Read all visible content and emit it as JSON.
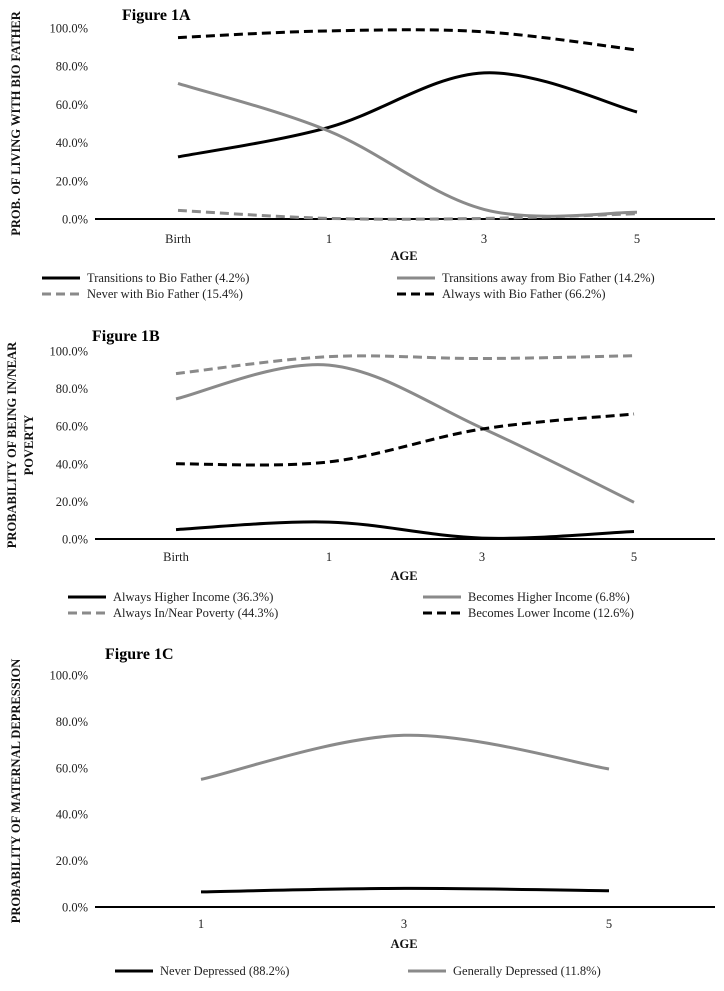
{
  "colors": {
    "black": "#000000",
    "gray": "#8a8a8a",
    "axis": "#000000"
  },
  "chart_data": [
    {
      "type": "line",
      "title": "Figure 1A",
      "xlabel": "AGE",
      "ylabel": "PROB. OF LIVING WITH BIO FATHER",
      "ylabel_lines": [
        "PROB. OF LIVING WITH BIO FATHER"
      ],
      "categories": [
        "Birth",
        "1",
        "3",
        "5"
      ],
      "ylim": [
        0,
        100
      ],
      "yticks": [
        "100.0%",
        "80.0%",
        "60.0%",
        "40.0%",
        "20.0%",
        "0.0%"
      ],
      "series": [
        {
          "name": "Transitions to Bio Father (4.2%)",
          "color": "#000000",
          "dashed": false,
          "values": [
            32.5,
            48,
            76.5,
            56
          ]
        },
        {
          "name": "Transitions away from Bio Father (14.2%)",
          "color": "#8a8a8a",
          "dashed": false,
          "values": [
            71,
            46,
            5,
            3.5
          ]
        },
        {
          "name": "Never with Bio Father (15.4%)",
          "color": "#8a8a8a",
          "dashed": true,
          "values": [
            4.5,
            0.3,
            0.3,
            2.8
          ]
        },
        {
          "name": "Always with Bio Father (66.2%)",
          "color": "#000000",
          "dashed": true,
          "values": [
            95,
            98.5,
            98,
            88.5
          ]
        }
      ]
    },
    {
      "type": "line",
      "title": "Figure 1B",
      "xlabel": "AGE",
      "ylabel": "PROBABILITY OF BEING IN/NEAR POVERTY",
      "ylabel_lines": [
        "PROBABILITY OF BEING IN/NEAR",
        "POVERTY"
      ],
      "categories": [
        "Birth",
        "1",
        "3",
        "5"
      ],
      "ylim": [
        0,
        100
      ],
      "yticks": [
        "100.0%",
        "80.0%",
        "60.0%",
        "40.0%",
        "20.0%",
        "0.0%"
      ],
      "series": [
        {
          "name": "Always Higher Income (36.3%)",
          "color": "#000000",
          "dashed": false,
          "values": [
            5,
            9,
            0.5,
            4
          ]
        },
        {
          "name": "Becomes Higher Income (6.8%)",
          "color": "#8a8a8a",
          "dashed": false,
          "values": [
            74.5,
            92.5,
            59,
            19.5
          ]
        },
        {
          "name": "Always In/Near Poverty (44.3%)",
          "color": "#8a8a8a",
          "dashed": true,
          "values": [
            88,
            97,
            96,
            97.5
          ]
        },
        {
          "name": "Becomes Lower Income (12.6%)",
          "color": "#000000",
          "dashed": true,
          "values": [
            40,
            41,
            58.5,
            66.5
          ]
        }
      ]
    },
    {
      "type": "line",
      "title": "Figure 1C",
      "xlabel": "AGE",
      "ylabel": "PROBABILITY OF MATERNAL DEPRESSION",
      "ylabel_lines": [
        "PROBABILITY OF MATERNAL DEPRESSION"
      ],
      "categories": [
        "1",
        "3",
        "5"
      ],
      "ylim": [
        0,
        100
      ],
      "yticks": [
        "100.0%",
        "80.0%",
        "60.0%",
        "40.0%",
        "20.0%",
        "0.0%"
      ],
      "series": [
        {
          "name": "Never Depressed (88.2%)",
          "color": "#000000",
          "dashed": false,
          "values": [
            6.5,
            8,
            7
          ]
        },
        {
          "name": "Generally Depressed (11.8%)",
          "color": "#8a8a8a",
          "dashed": false,
          "values": [
            55,
            74,
            59.5
          ]
        }
      ]
    }
  ]
}
